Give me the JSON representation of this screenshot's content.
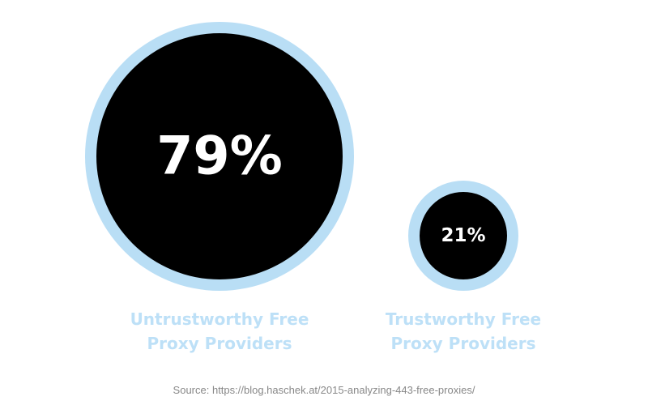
{
  "chart_data": {
    "type": "bubble",
    "categories": [
      "Untrustworthy Free Proxy Providers",
      "Trustworthy Free Proxy Providers"
    ],
    "values": [
      79,
      21
    ],
    "value_labels": [
      "79%",
      "21%"
    ],
    "color": "#000000",
    "ring_color": "#b9def5",
    "label_color": "#bde0f7",
    "source": "Source: https://blog.haschek.at/2015-analyzing-443-free-proxies/"
  }
}
